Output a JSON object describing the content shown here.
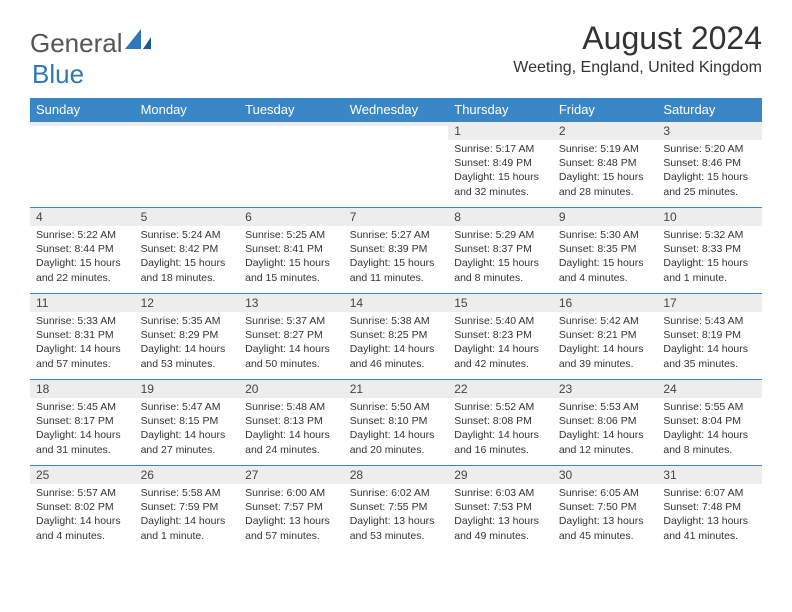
{
  "brand": {
    "part1": "General",
    "part2": "Blue"
  },
  "title": "August 2024",
  "location": "Weeting, England, United Kingdom",
  "colors": {
    "header_bg": "#3a87c8",
    "header_text": "#ffffff",
    "daynum_bg": "#ededed",
    "border": "#3a87c8",
    "text": "#333333",
    "brand_gray": "#555555",
    "brand_blue": "#2f78b7",
    "page_bg": "#ffffff"
  },
  "day_headers": [
    "Sunday",
    "Monday",
    "Tuesday",
    "Wednesday",
    "Thursday",
    "Friday",
    "Saturday"
  ],
  "weeks": [
    [
      {
        "n": "",
        "sr": "",
        "ss": "",
        "dl": ""
      },
      {
        "n": "",
        "sr": "",
        "ss": "",
        "dl": ""
      },
      {
        "n": "",
        "sr": "",
        "ss": "",
        "dl": ""
      },
      {
        "n": "",
        "sr": "",
        "ss": "",
        "dl": ""
      },
      {
        "n": "1",
        "sr": "Sunrise: 5:17 AM",
        "ss": "Sunset: 8:49 PM",
        "dl": "Daylight: 15 hours and 32 minutes."
      },
      {
        "n": "2",
        "sr": "Sunrise: 5:19 AM",
        "ss": "Sunset: 8:48 PM",
        "dl": "Daylight: 15 hours and 28 minutes."
      },
      {
        "n": "3",
        "sr": "Sunrise: 5:20 AM",
        "ss": "Sunset: 8:46 PM",
        "dl": "Daylight: 15 hours and 25 minutes."
      }
    ],
    [
      {
        "n": "4",
        "sr": "Sunrise: 5:22 AM",
        "ss": "Sunset: 8:44 PM",
        "dl": "Daylight: 15 hours and 22 minutes."
      },
      {
        "n": "5",
        "sr": "Sunrise: 5:24 AM",
        "ss": "Sunset: 8:42 PM",
        "dl": "Daylight: 15 hours and 18 minutes."
      },
      {
        "n": "6",
        "sr": "Sunrise: 5:25 AM",
        "ss": "Sunset: 8:41 PM",
        "dl": "Daylight: 15 hours and 15 minutes."
      },
      {
        "n": "7",
        "sr": "Sunrise: 5:27 AM",
        "ss": "Sunset: 8:39 PM",
        "dl": "Daylight: 15 hours and 11 minutes."
      },
      {
        "n": "8",
        "sr": "Sunrise: 5:29 AM",
        "ss": "Sunset: 8:37 PM",
        "dl": "Daylight: 15 hours and 8 minutes."
      },
      {
        "n": "9",
        "sr": "Sunrise: 5:30 AM",
        "ss": "Sunset: 8:35 PM",
        "dl": "Daylight: 15 hours and 4 minutes."
      },
      {
        "n": "10",
        "sr": "Sunrise: 5:32 AM",
        "ss": "Sunset: 8:33 PM",
        "dl": "Daylight: 15 hours and 1 minute."
      }
    ],
    [
      {
        "n": "11",
        "sr": "Sunrise: 5:33 AM",
        "ss": "Sunset: 8:31 PM",
        "dl": "Daylight: 14 hours and 57 minutes."
      },
      {
        "n": "12",
        "sr": "Sunrise: 5:35 AM",
        "ss": "Sunset: 8:29 PM",
        "dl": "Daylight: 14 hours and 53 minutes."
      },
      {
        "n": "13",
        "sr": "Sunrise: 5:37 AM",
        "ss": "Sunset: 8:27 PM",
        "dl": "Daylight: 14 hours and 50 minutes."
      },
      {
        "n": "14",
        "sr": "Sunrise: 5:38 AM",
        "ss": "Sunset: 8:25 PM",
        "dl": "Daylight: 14 hours and 46 minutes."
      },
      {
        "n": "15",
        "sr": "Sunrise: 5:40 AM",
        "ss": "Sunset: 8:23 PM",
        "dl": "Daylight: 14 hours and 42 minutes."
      },
      {
        "n": "16",
        "sr": "Sunrise: 5:42 AM",
        "ss": "Sunset: 8:21 PM",
        "dl": "Daylight: 14 hours and 39 minutes."
      },
      {
        "n": "17",
        "sr": "Sunrise: 5:43 AM",
        "ss": "Sunset: 8:19 PM",
        "dl": "Daylight: 14 hours and 35 minutes."
      }
    ],
    [
      {
        "n": "18",
        "sr": "Sunrise: 5:45 AM",
        "ss": "Sunset: 8:17 PM",
        "dl": "Daylight: 14 hours and 31 minutes."
      },
      {
        "n": "19",
        "sr": "Sunrise: 5:47 AM",
        "ss": "Sunset: 8:15 PM",
        "dl": "Daylight: 14 hours and 27 minutes."
      },
      {
        "n": "20",
        "sr": "Sunrise: 5:48 AM",
        "ss": "Sunset: 8:13 PM",
        "dl": "Daylight: 14 hours and 24 minutes."
      },
      {
        "n": "21",
        "sr": "Sunrise: 5:50 AM",
        "ss": "Sunset: 8:10 PM",
        "dl": "Daylight: 14 hours and 20 minutes."
      },
      {
        "n": "22",
        "sr": "Sunrise: 5:52 AM",
        "ss": "Sunset: 8:08 PM",
        "dl": "Daylight: 14 hours and 16 minutes."
      },
      {
        "n": "23",
        "sr": "Sunrise: 5:53 AM",
        "ss": "Sunset: 8:06 PM",
        "dl": "Daylight: 14 hours and 12 minutes."
      },
      {
        "n": "24",
        "sr": "Sunrise: 5:55 AM",
        "ss": "Sunset: 8:04 PM",
        "dl": "Daylight: 14 hours and 8 minutes."
      }
    ],
    [
      {
        "n": "25",
        "sr": "Sunrise: 5:57 AM",
        "ss": "Sunset: 8:02 PM",
        "dl": "Daylight: 14 hours and 4 minutes."
      },
      {
        "n": "26",
        "sr": "Sunrise: 5:58 AM",
        "ss": "Sunset: 7:59 PM",
        "dl": "Daylight: 14 hours and 1 minute."
      },
      {
        "n": "27",
        "sr": "Sunrise: 6:00 AM",
        "ss": "Sunset: 7:57 PM",
        "dl": "Daylight: 13 hours and 57 minutes."
      },
      {
        "n": "28",
        "sr": "Sunrise: 6:02 AM",
        "ss": "Sunset: 7:55 PM",
        "dl": "Daylight: 13 hours and 53 minutes."
      },
      {
        "n": "29",
        "sr": "Sunrise: 6:03 AM",
        "ss": "Sunset: 7:53 PM",
        "dl": "Daylight: 13 hours and 49 minutes."
      },
      {
        "n": "30",
        "sr": "Sunrise: 6:05 AM",
        "ss": "Sunset: 7:50 PM",
        "dl": "Daylight: 13 hours and 45 minutes."
      },
      {
        "n": "31",
        "sr": "Sunrise: 6:07 AM",
        "ss": "Sunset: 7:48 PM",
        "dl": "Daylight: 13 hours and 41 minutes."
      }
    ]
  ]
}
